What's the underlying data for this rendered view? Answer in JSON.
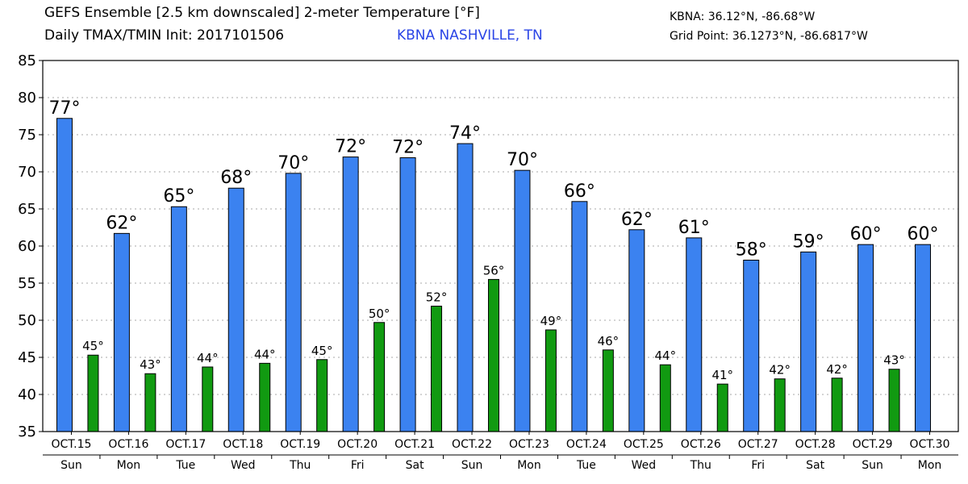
{
  "header": {
    "title_line1": "GEFS Ensemble [2.5 km downscaled] 2-meter Temperature [°F]",
    "title_line2": "Daily TMAX/TMIN Init: 2017101506",
    "station": "KBNA NASHVILLE, TN",
    "coord_station": "KBNA: 36.12°N, -86.68°W",
    "coord_grid": "Grid Point: 36.1273°N, -86.6817°W"
  },
  "colors": {
    "tmax": "#3b82f0",
    "tmin": "#119a11",
    "station_text": "#2a44e6"
  },
  "chart_data": {
    "type": "bar",
    "ylim": [
      35,
      85
    ],
    "yticks": [
      35,
      40,
      45,
      50,
      55,
      60,
      65,
      70,
      75,
      80,
      85
    ],
    "grid": true,
    "categories": [
      "OCT.15",
      "OCT.16",
      "OCT.17",
      "OCT.18",
      "OCT.19",
      "OCT.20",
      "OCT.21",
      "OCT.22",
      "OCT.23",
      "OCT.24",
      "OCT.25",
      "OCT.26",
      "OCT.27",
      "OCT.28",
      "OCT.29",
      "OCT.30"
    ],
    "days": [
      "Sun",
      "Mon",
      "Tue",
      "Wed",
      "Thu",
      "Fri",
      "Sat",
      "Sun",
      "Mon",
      "Tue",
      "Wed",
      "Thu",
      "Fri",
      "Sat",
      "Sun",
      "Mon"
    ],
    "series": [
      {
        "key": "tmax",
        "values": [
          77.2,
          61.7,
          65.3,
          67.8,
          69.8,
          72.0,
          71.9,
          73.8,
          70.2,
          66.0,
          62.2,
          61.1,
          58.1,
          59.2,
          60.2,
          60.2
        ],
        "labels": [
          "77°",
          "62°",
          "65°",
          "68°",
          "70°",
          "72°",
          "72°",
          "74°",
          "70°",
          "66°",
          "62°",
          "61°",
          "58°",
          "59°",
          "60°",
          "60°"
        ]
      },
      {
        "key": "tmin",
        "values": [
          45.3,
          42.8,
          43.7,
          44.2,
          44.7,
          49.7,
          51.9,
          55.5,
          48.7,
          46.0,
          44.0,
          41.4,
          42.1,
          42.2,
          43.4,
          null
        ],
        "labels": [
          "45°",
          "43°",
          "44°",
          "44°",
          "45°",
          "50°",
          "52°",
          "56°",
          "49°",
          "46°",
          "44°",
          "41°",
          "42°",
          "42°",
          "43°",
          ""
        ]
      }
    ]
  }
}
